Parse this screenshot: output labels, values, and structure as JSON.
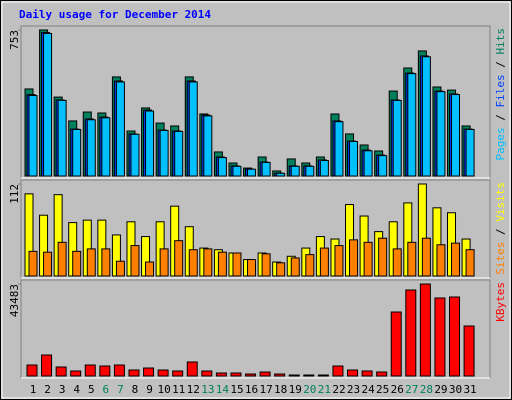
{
  "chart_data": [
    {
      "type": "bar",
      "title": "Daily usage for December 2014",
      "legend_separator": " / ",
      "ylim": [
        0,
        753
      ],
      "yticks": [
        753
      ],
      "series": [
        {
          "name": "Hits",
          "color": "#00805c",
          "values": [
            449,
            753,
            407,
            284,
            330,
            325,
            511,
            232,
            351,
            273,
            258,
            511,
            320,
            124,
            67,
            41,
            98,
            26,
            88,
            67,
            98,
            320,
            217,
            160,
            129,
            438,
            557,
            645,
            459,
            443,
            258
          ]
        },
        {
          "name": "Files",
          "color": "#0040ff",
          "values": [
            420,
            740,
            392,
            242,
            294,
            304,
            490,
            217,
            340,
            237,
            232,
            490,
            314,
            98,
            52,
            36,
            72,
            15,
            52,
            52,
            83,
            284,
            180,
            134,
            108,
            392,
            531,
            619,
            438,
            423,
            242
          ]
        },
        {
          "name": "Pages",
          "color": "#00c0ff",
          "values": [
            415,
            735,
            390,
            240,
            290,
            300,
            485,
            215,
            335,
            235,
            230,
            485,
            310,
            95,
            50,
            35,
            70,
            14,
            50,
            50,
            80,
            280,
            178,
            130,
            105,
            390,
            528,
            615,
            435,
            420,
            240
          ]
        }
      ]
    },
    {
      "type": "bar",
      "legend_separator": " / ",
      "ylim": [
        0,
        112
      ],
      "yticks": [
        112
      ],
      "series": [
        {
          "name": "Visits",
          "color": "#ffff00",
          "values": [
            100,
            74,
            99,
            65,
            68,
            68,
            50,
            66,
            48,
            66,
            85,
            60,
            34,
            32,
            28,
            20,
            28,
            17,
            24,
            34,
            48,
            45,
            87,
            73,
            54,
            66,
            89,
            112,
            83,
            77,
            45
          ]
        },
        {
          "name": "Sites",
          "color": "#ff8000",
          "values": [
            30,
            29,
            41,
            30,
            33,
            33,
            18,
            37,
            17,
            33,
            43,
            32,
            33,
            29,
            28,
            20,
            27,
            16,
            22,
            26,
            34,
            37,
            44,
            41,
            46,
            33,
            41,
            46,
            38,
            40,
            32
          ]
        }
      ]
    },
    {
      "type": "bar",
      "ylim": [
        0,
        43483
      ],
      "yticks": [
        43483
      ],
      "categories": [
        "1",
        "2",
        "3",
        "4",
        "5",
        "6",
        "7",
        "8",
        "9",
        "10",
        "11",
        "12",
        "13",
        "14",
        "15",
        "16",
        "17",
        "18",
        "19",
        "20",
        "21",
        "22",
        "23",
        "24",
        "25",
        "26",
        "27",
        "28",
        "29",
        "30",
        "31"
      ],
      "category_colors": [
        "#000000",
        "#000000",
        "#000000",
        "#000000",
        "#000000",
        "#00805c",
        "#00805c",
        "#000000",
        "#000000",
        "#000000",
        "#000000",
        "#000000",
        "#00805c",
        "#00805c",
        "#000000",
        "#000000",
        "#000000",
        "#000000",
        "#000000",
        "#00805c",
        "#00805c",
        "#000000",
        "#000000",
        "#000000",
        "#000000",
        "#000000",
        "#00805c",
        "#00805c",
        "#000000",
        "#000000",
        "#000000"
      ],
      "series": [
        {
          "name": "KBytes",
          "color": "#ff0000",
          "values": [
            5199,
            9925,
            4254,
            2363,
            5199,
            4726,
            5199,
            2836,
            3781,
            2836,
            2363,
            6617,
            2363,
            1418,
            1418,
            945,
            1890,
            945,
            473,
            473,
            473,
            4726,
            2836,
            2363,
            1890,
            30248,
            40645,
            43483,
            36864,
            37336,
            23631
          ]
        }
      ]
    }
  ]
}
